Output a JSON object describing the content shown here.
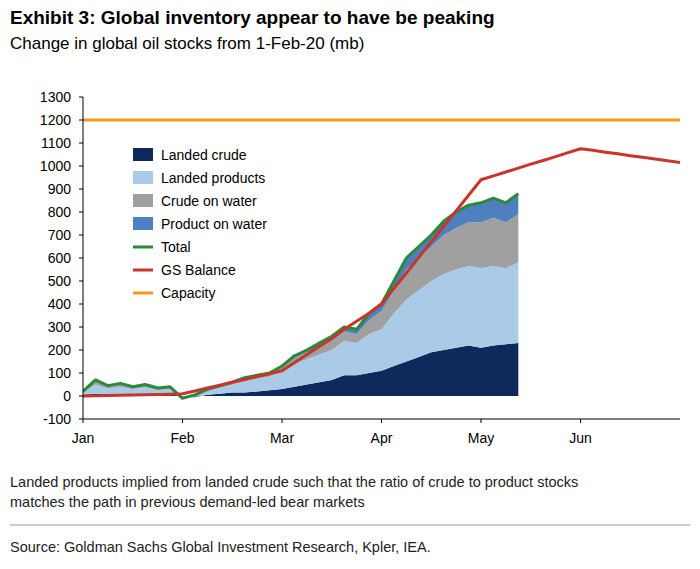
{
  "chart_data": {
    "type": "area",
    "title": "Exhibit 3: Global inventory appear to have be peaking",
    "subtitle": "Change in global oil stocks from 1-Feb-20 (mb)",
    "footnote": [
      "Landed products implied from landed crude such that the ratio of crude to product stocks",
      "matches the path in previous demand-led bear markets"
    ],
    "source": "Source: Goldman Sachs Global Investment Research, Kpler, IEA.",
    "categories": [
      "Jan",
      null,
      null,
      null,
      null,
      null,
      null,
      null,
      "Feb",
      null,
      null,
      null,
      null,
      null,
      null,
      null,
      "Mar",
      null,
      null,
      null,
      null,
      null,
      null,
      null,
      "Apr",
      null,
      null,
      null,
      null,
      null,
      null,
      null,
      "May",
      null,
      null,
      null,
      null,
      null,
      null,
      null,
      "Jun",
      null,
      null,
      null,
      null,
      null,
      null,
      null,
      null
    ],
    "ylim": [
      -100,
      1300
    ],
    "yticks": [
      -100,
      0,
      100,
      200,
      300,
      400,
      500,
      600,
      700,
      800,
      900,
      1000,
      1100,
      1200,
      1300
    ],
    "grid": false,
    "stacked": true,
    "legend": "upper left",
    "series": [
      {
        "name": "Landed crude",
        "type": "area",
        "color": "#0c2b5c",
        "values": [
          5,
          10,
          8,
          10,
          8,
          10,
          5,
          8,
          0,
          -5,
          5,
          10,
          15,
          15,
          20,
          25,
          30,
          40,
          50,
          60,
          70,
          90,
          90,
          100,
          110,
          130,
          150,
          170,
          190,
          200,
          210,
          220,
          210,
          220,
          225,
          230,
          null,
          null,
          null,
          null,
          null,
          null,
          null,
          null,
          null,
          null,
          null,
          null,
          null
        ]
      },
      {
        "name": "Landed products",
        "type": "area",
        "color": "#a9cbe8",
        "values": [
          10,
          40,
          25,
          30,
          22,
          28,
          20,
          22,
          -5,
          0,
          15,
          25,
          35,
          50,
          55,
          60,
          80,
          100,
          110,
          120,
          130,
          150,
          140,
          170,
          180,
          230,
          270,
          290,
          310,
          330,
          340,
          345,
          345,
          345,
          330,
          350,
          null,
          null,
          null,
          null,
          null,
          null,
          null,
          null,
          null,
          null,
          null,
          null,
          null
        ]
      },
      {
        "name": "Crude on water",
        "type": "area",
        "color": "#a0a0a0",
        "values": [
          5,
          15,
          10,
          12,
          8,
          10,
          8,
          8,
          -3,
          5,
          8,
          8,
          8,
          12,
          12,
          12,
          15,
          25,
          30,
          35,
          40,
          40,
          40,
          60,
          80,
          100,
          130,
          140,
          150,
          170,
          180,
          190,
          200,
          210,
          200,
          210,
          null,
          null,
          null,
          null,
          null,
          null,
          null,
          null,
          null,
          null,
          null,
          null,
          null
        ]
      },
      {
        "name": "Product on water",
        "type": "area",
        "color": "#4f7fbf",
        "values": [
          0,
          5,
          2,
          3,
          2,
          2,
          2,
          2,
          -2,
          5,
          2,
          2,
          2,
          3,
          3,
          3,
          5,
          10,
          10,
          15,
          20,
          20,
          20,
          30,
          30,
          40,
          50,
          50,
          50,
          60,
          70,
          75,
          85,
          85,
          85,
          90,
          null,
          null,
          null,
          null,
          null,
          null,
          null,
          null,
          null,
          null,
          null,
          null,
          null
        ]
      },
      {
        "name": "Total",
        "type": "line",
        "color": "#2a8a3a",
        "values": [
          20,
          70,
          45,
          55,
          40,
          50,
          35,
          40,
          -10,
          5,
          30,
          45,
          60,
          80,
          90,
          100,
          130,
          175,
          200,
          230,
          260,
          300,
          290,
          360,
          400,
          500,
          600,
          650,
          700,
          760,
          800,
          830,
          840,
          860,
          840,
          880,
          null,
          null,
          null,
          null,
          null,
          null,
          null,
          null,
          null,
          null,
          null,
          null,
          null
        ]
      },
      {
        "name": "GS Balance",
        "type": "line",
        "color": "#c8352b",
        "values": [
          0,
          1,
          2,
          3,
          4,
          5,
          6,
          8,
          10,
          22,
          35,
          47,
          60,
          72,
          85,
          97,
          110,
          145,
          180,
          215,
          250,
          290,
          325,
          360,
          400,
          468,
          535,
          603,
          670,
          738,
          805,
          873,
          940,
          957,
          974,
          991,
          1008,
          1024,
          1041,
          1058,
          1075,
          1068,
          1060,
          1053,
          1045,
          1038,
          1030,
          1023,
          1015
        ]
      },
      {
        "name": "Capacity",
        "type": "line",
        "color": "#f5961e",
        "values": [
          1200,
          1200,
          1200,
          1200,
          1200,
          1200,
          1200,
          1200,
          1200,
          1200,
          1200,
          1200,
          1200,
          1200,
          1200,
          1200,
          1200,
          1200,
          1200,
          1200,
          1200,
          1200,
          1200,
          1200,
          1200,
          1200,
          1200,
          1200,
          1200,
          1200,
          1200,
          1200,
          1200,
          1200,
          1200,
          1200,
          1200,
          1200,
          1200,
          1200,
          1200,
          1200,
          1200,
          1200,
          1200,
          1200,
          1200,
          1200,
          1200
        ]
      }
    ]
  }
}
